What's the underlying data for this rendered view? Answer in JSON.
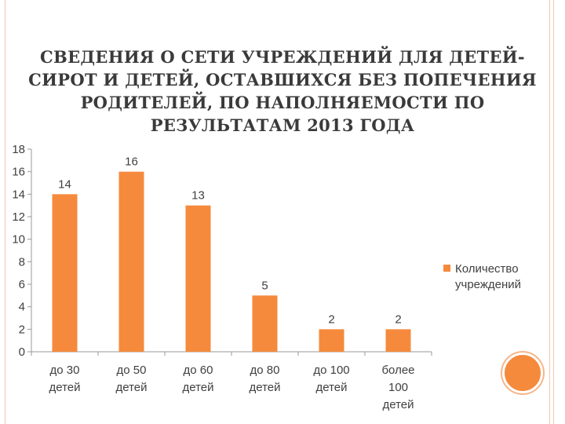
{
  "title": "СВЕДЕНИЯ О СЕТИ УЧРЕЖДЕНИЙ ДЛЯ ДЕТЕЙ-СИРОТ И ДЕТЕЙ, ОСТАВШИХСЯ БЕЗ ПОПЕЧЕНИЯ РОДИТЕЛЕЙ, ПО НАПОЛНЯЕМОСТИ ПО РЕЗУЛЬТАТАМ 2013 ГОДА",
  "colors": {
    "bar": "#f58a3c",
    "accent_circle": "#f58a3c",
    "frame_line": "#f1c9b2"
  },
  "chart_data": {
    "type": "bar",
    "categories": [
      [
        "до 30",
        "детей"
      ],
      [
        "до 50",
        "детей"
      ],
      [
        "до 60",
        "детей"
      ],
      [
        "до 80",
        "детей"
      ],
      [
        "до 100",
        "детей"
      ],
      [
        "более",
        "100",
        "детей"
      ]
    ],
    "series": [
      {
        "name": "Количество учреждений",
        "values": [
          14,
          16,
          13,
          5,
          2,
          2
        ]
      }
    ],
    "ylim": [
      0,
      18
    ],
    "yticks": [
      0,
      2,
      4,
      6,
      8,
      10,
      12,
      14,
      16,
      18
    ],
    "grid": false,
    "legend_position": "right",
    "data_labels": true,
    "xlabel": "",
    "ylabel": ""
  }
}
